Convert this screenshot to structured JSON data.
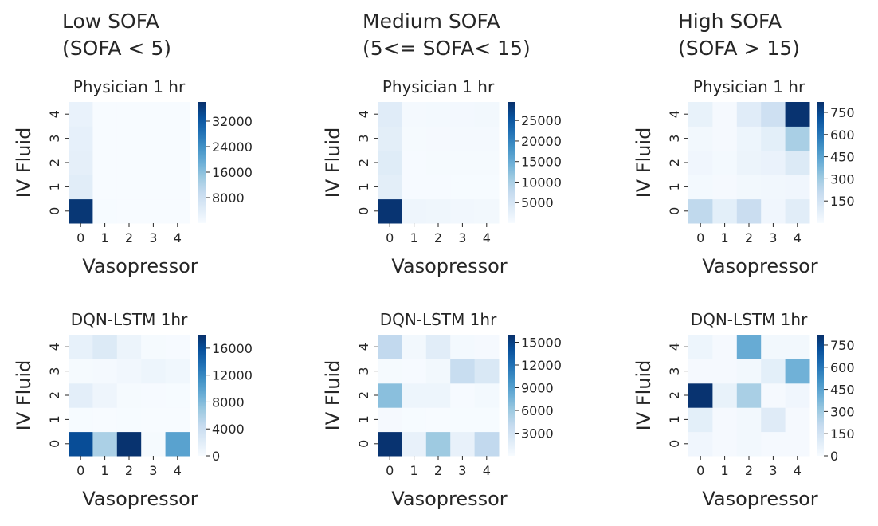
{
  "figure": {
    "column_titles": [
      [
        "Low SOFA",
        "(SOFA < 5)"
      ],
      [
        "Medium SOFA",
        "(5<= SOFA< 15)"
      ],
      [
        "High SOFA",
        "(SOFA > 15)"
      ]
    ],
    "colormap": [
      "#f7fbff",
      "#deebf7",
      "#c6dbef",
      "#9ecae1",
      "#6baed6",
      "#4292c6",
      "#2171b5",
      "#08519c",
      "#08306b"
    ]
  },
  "chart_data": [
    {
      "type": "heatmap",
      "title": "Physician 1 hr",
      "xlabel": "Vasopressor",
      "ylabel": "IV Fluid",
      "x_categories": [
        "0",
        "1",
        "2",
        "3",
        "4"
      ],
      "y_categories": [
        "0",
        "1",
        "2",
        "3",
        "4"
      ],
      "values": [
        [
          37000,
          100,
          80,
          60,
          40
        ],
        [
          4200,
          20,
          20,
          10,
          10
        ],
        [
          3500,
          30,
          20,
          20,
          10
        ],
        [
          3200,
          40,
          30,
          20,
          20
        ],
        [
          2600,
          60,
          50,
          40,
          30
        ]
      ],
      "vmin": 0,
      "vmax": 38000,
      "colorbar_ticks": [
        8000,
        16000,
        24000,
        32000
      ]
    },
    {
      "type": "heatmap",
      "title": "Physician 1 hr",
      "xlabel": "Vasopressor",
      "ylabel": "IV Fluid",
      "x_categories": [
        "0",
        "1",
        "2",
        "3",
        "4"
      ],
      "y_categories": [
        "0",
        "1",
        "2",
        "3",
        "4"
      ],
      "values": [
        [
          29000,
          1400,
          1200,
          900,
          700
        ],
        [
          3000,
          150,
          150,
          100,
          100
        ],
        [
          3500,
          200,
          250,
          300,
          250
        ],
        [
          3000,
          300,
          350,
          450,
          500
        ],
        [
          3400,
          400,
          550,
          650,
          800
        ]
      ],
      "vmin": 0,
      "vmax": 29500,
      "colorbar_ticks": [
        5000,
        10000,
        15000,
        20000,
        25000
      ]
    },
    {
      "type": "heatmap",
      "title": "Physician 1 hr",
      "xlabel": "Vasopressor",
      "ylabel": "IV Fluid",
      "x_categories": [
        "0",
        "1",
        "2",
        "3",
        "4"
      ],
      "y_categories": [
        "0",
        "1",
        "2",
        "3",
        "4"
      ],
      "values": [
        [
          220,
          80,
          190,
          30,
          90
        ],
        [
          15,
          10,
          20,
          25,
          30
        ],
        [
          30,
          15,
          45,
          55,
          110
        ],
        [
          20,
          10,
          40,
          80,
          280
        ],
        [
          60,
          10,
          95,
          170,
          810
        ]
      ],
      "vmin": 0,
      "vmax": 820,
      "colorbar_ticks": [
        150,
        300,
        450,
        600,
        750
      ]
    },
    {
      "type": "heatmap",
      "title": "DQN-LSTM 1hr",
      "xlabel": "Vasopressor",
      "ylabel": "IV Fluid",
      "x_categories": [
        "0",
        "1",
        "2",
        "3",
        "4"
      ],
      "y_categories": [
        "0",
        "1",
        "2",
        "3",
        "4"
      ],
      "values": [
        [
          16000,
          6000,
          17800,
          200,
          10000
        ],
        [
          60,
          40,
          50,
          40,
          30
        ],
        [
          1800,
          800,
          150,
          100,
          50
        ],
        [
          200,
          300,
          500,
          900,
          600
        ],
        [
          1400,
          2400,
          1000,
          150,
          80
        ]
      ],
      "vmin": 0,
      "vmax": 18000,
      "colorbar_ticks": [
        0,
        4000,
        8000,
        12000,
        16000
      ]
    },
    {
      "type": "heatmap",
      "title": "DQN-LSTM 1hr",
      "xlabel": "Vasopressor",
      "ylabel": "IV Fluid",
      "x_categories": [
        "0",
        "1",
        "2",
        "3",
        "4"
      ],
      "y_categories": [
        "0",
        "1",
        "2",
        "3",
        "4"
      ],
      "values": [
        [
          15800,
          1200,
          6000,
          1200,
          4200
        ],
        [
          200,
          60,
          40,
          50,
          60
        ],
        [
          6800,
          800,
          800,
          100,
          300
        ],
        [
          150,
          100,
          400,
          3800,
          2400
        ],
        [
          4200,
          400,
          1800,
          300,
          200
        ]
      ],
      "vmin": 0,
      "vmax": 16000,
      "colorbar_ticks": [
        3000,
        6000,
        9000,
        12000,
        15000
      ]
    },
    {
      "type": "heatmap",
      "title": "DQN-LSTM 1hr",
      "xlabel": "Vasopressor",
      "ylabel": "IV Fluid",
      "x_categories": [
        "0",
        "1",
        "2",
        "3",
        "4"
      ],
      "y_categories": [
        "0",
        "1",
        "2",
        "3",
        "4"
      ],
      "values": [
        [
          30,
          10,
          20,
          10,
          10
        ],
        [
          80,
          10,
          20,
          100,
          10
        ],
        [
          810,
          60,
          280,
          10,
          30
        ],
        [
          10,
          10,
          20,
          80,
          400
        ],
        [
          40,
          10,
          420,
          20,
          20
        ]
      ],
      "vmin": 0,
      "vmax": 820,
      "colorbar_ticks": [
        0,
        150,
        300,
        450,
        600,
        750
      ]
    }
  ]
}
